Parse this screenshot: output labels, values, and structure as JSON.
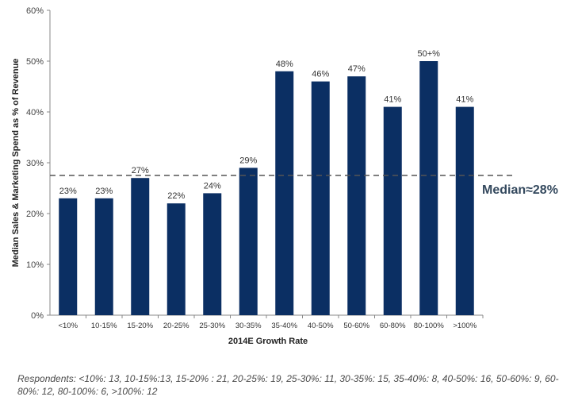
{
  "chart_data": {
    "type": "bar",
    "categories": [
      "<10%",
      "10-15%",
      "15-20%",
      "20-25%",
      "25-30%",
      "30-35%",
      "35-40%",
      "40-50%",
      "50-60%",
      "60-80%",
      "80-100%",
      ">100%"
    ],
    "values": [
      23,
      23,
      27,
      22,
      24,
      29,
      48,
      46,
      47,
      41,
      50,
      41
    ],
    "data_labels": [
      "23%",
      "23%",
      "27%",
      "22%",
      "24%",
      "29%",
      "48%",
      "46%",
      "47%",
      "41%",
      "50+%",
      "41%"
    ],
    "ylim": [
      0,
      60
    ],
    "yticks": [
      "0%",
      "10%",
      "20%",
      "30%",
      "40%",
      "50%",
      "60%"
    ],
    "xlabel": "2014E Growth Rate",
    "ylabel": "Median Sales & Marketing Spend as % of Revenue",
    "median": {
      "value": 27.5,
      "label": "Median≈28%"
    },
    "bar_color": "#0b2f63",
    "median_line_color": "#555555",
    "grid": false
  },
  "footnote": "Respondents: <10%: 13, 10-15%:13, 15-20% : 21, 20-25%: 19, 25-30%: 11, 30-35%: 15, 35-40%: 8, 40-50%: 16, 50-60%: 9, 60-80%: 12, 80-100%: 6, >100%: 12"
}
